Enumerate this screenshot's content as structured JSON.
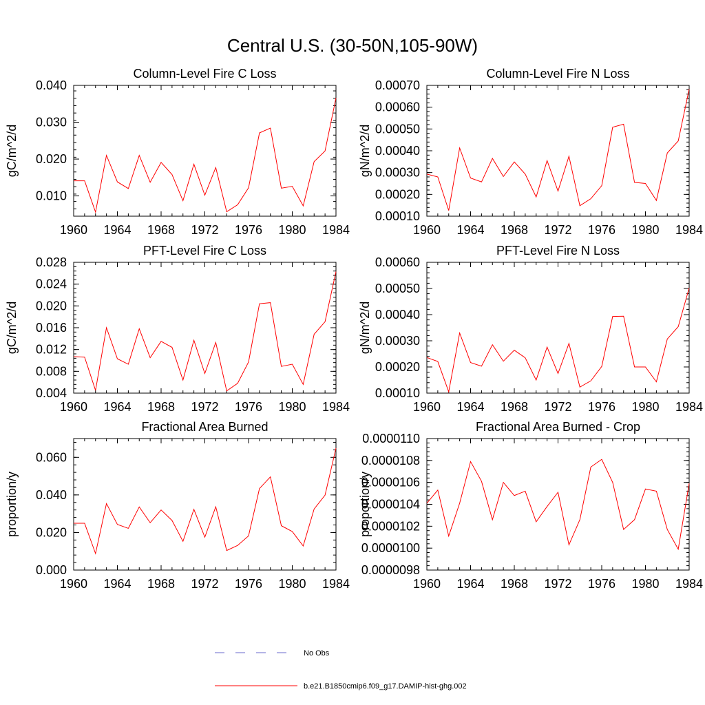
{
  "figure": {
    "title": "Central U.S. (30-50N,105-90W)",
    "legend": [
      {
        "label": "No Obs",
        "color": "#6a6acd",
        "dash": "dashed"
      },
      {
        "label": "b.e21.B1850cmip6.f09_g17.DAMIP-hist-ghg.002",
        "color": "#ff0000",
        "dash": "solid"
      }
    ]
  },
  "chart_data": [
    {
      "type": "line",
      "title": "Column-Level Fire C Loss",
      "xlabel": "",
      "ylabel": "gC/m^2/d",
      "xlim": [
        1960,
        1984
      ],
      "ylim": [
        0.0045,
        0.04
      ],
      "xticks": [
        "1960",
        "1964",
        "1968",
        "1972",
        "1976",
        "1980",
        "1984"
      ],
      "yticks": [
        "0.010",
        "0.020",
        "0.030",
        "0.040"
      ],
      "series": [
        {
          "color": "#ff0000",
          "x": [
            1960,
            1961,
            1962,
            1963,
            1964,
            1965,
            1966,
            1967,
            1968,
            1969,
            1970,
            1971,
            1972,
            1973,
            1974,
            1975,
            1976,
            1977,
            1978,
            1979,
            1980,
            1981,
            1982,
            1983,
            1984
          ],
          "values": [
            0.0141,
            0.0141,
            0.0056,
            0.021,
            0.0138,
            0.012,
            0.021,
            0.0137,
            0.0191,
            0.0158,
            0.0087,
            0.0186,
            0.0102,
            0.0177,
            0.0057,
            0.0076,
            0.0122,
            0.0271,
            0.0284,
            0.0121,
            0.0126,
            0.0073,
            0.0193,
            0.0222,
            0.0366
          ]
        }
      ]
    },
    {
      "type": "line",
      "title": "Column-Level Fire N Loss",
      "xlabel": "",
      "ylabel": "gN/m^2/d",
      "xlim": [
        1960,
        1984
      ],
      "ylim": [
        0.0001,
        0.0007
      ],
      "xticks": [
        "1960",
        "1964",
        "1968",
        "1972",
        "1976",
        "1980",
        "1984"
      ],
      "yticks": [
        "0.00010",
        "0.00020",
        "0.00030",
        "0.00040",
        "0.00050",
        "0.00060",
        "0.00070"
      ],
      "series": [
        {
          "color": "#ff0000",
          "x": [
            1960,
            1961,
            1962,
            1963,
            1964,
            1965,
            1966,
            1967,
            1968,
            1969,
            1970,
            1971,
            1972,
            1973,
            1974,
            1975,
            1976,
            1977,
            1978,
            1979,
            1980,
            1981,
            1982,
            1983,
            1984
          ],
          "values": [
            0.000293,
            0.00028,
            0.000126,
            0.000413,
            0.000275,
            0.000257,
            0.000365,
            0.000282,
            0.000349,
            0.000293,
            0.000188,
            0.000355,
            0.000215,
            0.000375,
            0.000148,
            0.00018,
            0.00024,
            0.000508,
            0.000522,
            0.000255,
            0.00025,
            0.000172,
            0.00039,
            0.000445,
            0.000683
          ]
        }
      ]
    },
    {
      "type": "line",
      "title": "PFT-Level Fire C Loss",
      "xlabel": "",
      "ylabel": "gC/m^2/d",
      "xlim": [
        1960,
        1984
      ],
      "ylim": [
        0.004,
        0.028
      ],
      "xticks": [
        "1960",
        "1964",
        "1968",
        "1972",
        "1976",
        "1980",
        "1984"
      ],
      "yticks": [
        "0.004",
        "0.008",
        "0.012",
        "0.016",
        "0.020",
        "0.024",
        "0.028"
      ],
      "series": [
        {
          "color": "#ff0000",
          "x": [
            1960,
            1961,
            1962,
            1963,
            1964,
            1965,
            1966,
            1967,
            1968,
            1969,
            1970,
            1971,
            1972,
            1973,
            1974,
            1975,
            1976,
            1977,
            1978,
            1979,
            1980,
            1981,
            1982,
            1983,
            1984
          ],
          "values": [
            0.0107,
            0.0106,
            0.0045,
            0.016,
            0.0103,
            0.0093,
            0.0158,
            0.0105,
            0.0135,
            0.0124,
            0.0064,
            0.0137,
            0.0076,
            0.0133,
            0.0044,
            0.0058,
            0.0097,
            0.0204,
            0.0206,
            0.0089,
            0.0093,
            0.0056,
            0.0148,
            0.0171,
            0.0263
          ]
        }
      ]
    },
    {
      "type": "line",
      "title": "PFT-Level Fire N Loss",
      "xlabel": "",
      "ylabel": "gN/m^2/d",
      "xlim": [
        1960,
        1984
      ],
      "ylim": [
        0.0001,
        0.0006
      ],
      "xticks": [
        "1960",
        "1964",
        "1968",
        "1972",
        "1976",
        "1980",
        "1984"
      ],
      "yticks": [
        "0.00010",
        "0.00020",
        "0.00030",
        "0.00040",
        "0.00050",
        "0.00060"
      ],
      "series": [
        {
          "color": "#ff0000",
          "x": [
            1960,
            1961,
            1962,
            1963,
            1964,
            1965,
            1966,
            1967,
            1968,
            1969,
            1970,
            1971,
            1972,
            1973,
            1974,
            1975,
            1976,
            1977,
            1978,
            1979,
            1980,
            1981,
            1982,
            1983,
            1984
          ],
          "values": [
            0.000236,
            0.000221,
            0.000105,
            0.00033,
            0.000217,
            0.000203,
            0.000285,
            0.000222,
            0.000264,
            0.000235,
            0.00015,
            0.000276,
            0.000175,
            0.00029,
            0.000123,
            0.000147,
            0.000202,
            0.000393,
            0.000394,
            0.0002,
            0.0002,
            0.000143,
            0.000307,
            0.000354,
            0.000502
          ]
        }
      ]
    },
    {
      "type": "line",
      "title": "Fractional Area Burned",
      "xlabel": "",
      "ylabel": "proportion/y",
      "xlim": [
        1960,
        1984
      ],
      "ylim": [
        0.0,
        0.07
      ],
      "xticks": [
        "1960",
        "1964",
        "1968",
        "1972",
        "1976",
        "1980",
        "1984"
      ],
      "yticks": [
        "0.000",
        "0.020",
        "0.040",
        "0.060"
      ],
      "series": [
        {
          "color": "#ff0000",
          "x": [
            1960,
            1961,
            1962,
            1963,
            1964,
            1965,
            1966,
            1967,
            1968,
            1969,
            1970,
            1971,
            1972,
            1973,
            1974,
            1975,
            1976,
            1977,
            1978,
            1979,
            1980,
            1981,
            1982,
            1983,
            1984
          ],
          "values": [
            0.0249,
            0.0249,
            0.0088,
            0.0354,
            0.0243,
            0.0222,
            0.0336,
            0.0252,
            0.032,
            0.0264,
            0.0153,
            0.0323,
            0.0175,
            0.0337,
            0.0104,
            0.0131,
            0.0182,
            0.0434,
            0.0496,
            0.0236,
            0.0205,
            0.0128,
            0.0325,
            0.0399,
            0.0649
          ]
        }
      ]
    },
    {
      "type": "line",
      "title": "Fractional Area Burned - Crop",
      "xlabel": "",
      "ylabel": "proportion/y",
      "xlim": [
        1960,
        1984
      ],
      "ylim": [
        9.8e-06,
        1.1e-05
      ],
      "xticks": [
        "1960",
        "1964",
        "1968",
        "1972",
        "1976",
        "1980",
        "1984"
      ],
      "yticks": [
        "0.0000098",
        "0.0000100",
        "0.0000102",
        "0.0000104",
        "0.0000106",
        "0.0000108",
        "0.0000110"
      ],
      "series": [
        {
          "color": "#ff0000",
          "x": [
            1960,
            1961,
            1962,
            1963,
            1964,
            1965,
            1966,
            1967,
            1968,
            1969,
            1970,
            1971,
            1972,
            1973,
            1974,
            1975,
            1976,
            1977,
            1978,
            1979,
            1980,
            1981,
            1982,
            1983,
            1984
          ],
          "values": [
            1.041e-05,
            1.053e-05,
            1.011e-05,
            1.041e-05,
            1.079e-05,
            1.061e-05,
            1.026e-05,
            1.06e-05,
            1.048e-05,
            1.052e-05,
            1.024e-05,
            1.038e-05,
            1.051e-05,
            1.003e-05,
            1.026e-05,
            1.074e-05,
            1.081e-05,
            1.06e-05,
            1.017e-05,
            1.026e-05,
            1.054e-05,
            1.052e-05,
            1.017e-05,
            9.99e-06,
            1.059e-05
          ]
        }
      ]
    }
  ]
}
